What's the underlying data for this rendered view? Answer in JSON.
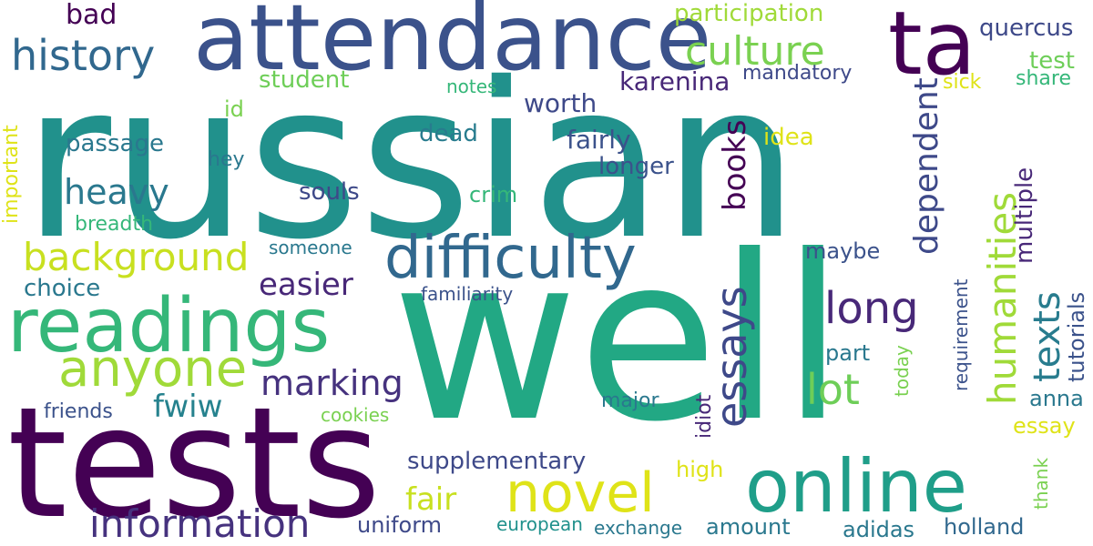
{
  "words": [
    {
      "text": "russian",
      "color": "#21918c"
    },
    {
      "text": "well",
      "color": "#22a884"
    },
    {
      "text": "tests",
      "color": "#440154"
    },
    {
      "text": "attendance",
      "color": "#3b528b"
    },
    {
      "text": "online",
      "color": "#1f9e89"
    },
    {
      "text": "readings",
      "color": "#35b779"
    },
    {
      "text": "difficulty",
      "color": "#31688e"
    },
    {
      "text": "ta",
      "color": "#440154"
    },
    {
      "text": "anyone",
      "color": "#a0da39"
    },
    {
      "text": "novel",
      "color": "#dfe318"
    },
    {
      "text": "information",
      "color": "#46327e"
    },
    {
      "text": "background",
      "color": "#c8e020"
    },
    {
      "text": "history",
      "color": "#31688e"
    },
    {
      "text": "culture",
      "color": "#7ad151"
    },
    {
      "text": "essays",
      "color": "#3e4989"
    },
    {
      "text": "humanities",
      "color": "#a0da39"
    },
    {
      "text": "texts",
      "color": "#287c8e"
    },
    {
      "text": "long",
      "color": "#482878"
    },
    {
      "text": "lot",
      "color": "#6ece58"
    },
    {
      "text": "marking",
      "color": "#46327e"
    },
    {
      "text": "heavy",
      "color": "#2a788e"
    },
    {
      "text": "books",
      "color": "#440154"
    },
    {
      "text": "dependent",
      "color": "#3e4989"
    },
    {
      "text": "easier",
      "color": "#482878"
    },
    {
      "text": "fwiw",
      "color": "#26828e"
    },
    {
      "text": "fair",
      "color": "#c8e020"
    },
    {
      "text": "multiple",
      "color": "#482878"
    },
    {
      "text": "supplementary",
      "color": "#3e4989"
    },
    {
      "text": "worth",
      "color": "#3e4989"
    },
    {
      "text": "karenina",
      "color": "#482878"
    },
    {
      "text": "fairly",
      "color": "#3b528b"
    },
    {
      "text": "longer",
      "color": "#3b528b"
    },
    {
      "text": "dead",
      "color": "#287c8e"
    },
    {
      "text": "passage",
      "color": "#2a788e"
    },
    {
      "text": "souls",
      "color": "#3e4989"
    },
    {
      "text": "bad",
      "color": "#440154"
    },
    {
      "text": "quercus",
      "color": "#3e4989"
    },
    {
      "text": "participation",
      "color": "#a0da39"
    },
    {
      "text": "student",
      "color": "#6ece58"
    },
    {
      "text": "test",
      "color": "#6ece58"
    },
    {
      "text": "mandatory",
      "color": "#3e4989"
    },
    {
      "text": "sick",
      "color": "#dfe318"
    },
    {
      "text": "share",
      "color": "#35b779"
    },
    {
      "text": "notes",
      "color": "#35b779"
    },
    {
      "text": "id",
      "color": "#7ad151"
    },
    {
      "text": "idea",
      "color": "#dfe318"
    },
    {
      "text": "hey",
      "color": "#2a788e"
    },
    {
      "text": "crim",
      "color": "#35b779"
    },
    {
      "text": "breadth",
      "color": "#35b779"
    },
    {
      "text": "someone",
      "color": "#2a788e"
    },
    {
      "text": "maybe",
      "color": "#3b528b"
    },
    {
      "text": "choice",
      "color": "#2a788e"
    },
    {
      "text": "familiarity",
      "color": "#3b528b"
    },
    {
      "text": "part",
      "color": "#2a788e"
    },
    {
      "text": "idiot",
      "color": "#482878"
    },
    {
      "text": "major",
      "color": "#2a788e"
    },
    {
      "text": "anna",
      "color": "#2a788e"
    },
    {
      "text": "essay",
      "color": "#dfe318"
    },
    {
      "text": "friends",
      "color": "#3b528b"
    },
    {
      "text": "cookies",
      "color": "#7ad151"
    },
    {
      "text": "high",
      "color": "#dfe318"
    },
    {
      "text": "uniform",
      "color": "#3e4989"
    },
    {
      "text": "european",
      "color": "#21918c"
    },
    {
      "text": "exchange",
      "color": "#2a788e"
    },
    {
      "text": "amount",
      "color": "#2a788e"
    },
    {
      "text": "adidas",
      "color": "#2a788e"
    },
    {
      "text": "holland",
      "color": "#31688e"
    },
    {
      "text": "important",
      "color": "#dfe318"
    },
    {
      "text": "today",
      "color": "#7ad151"
    },
    {
      "text": "requirement",
      "color": "#3b528b"
    },
    {
      "text": "tutorials",
      "color": "#3b528b"
    },
    {
      "text": "thank",
      "color": "#7ad151"
    }
  ]
}
